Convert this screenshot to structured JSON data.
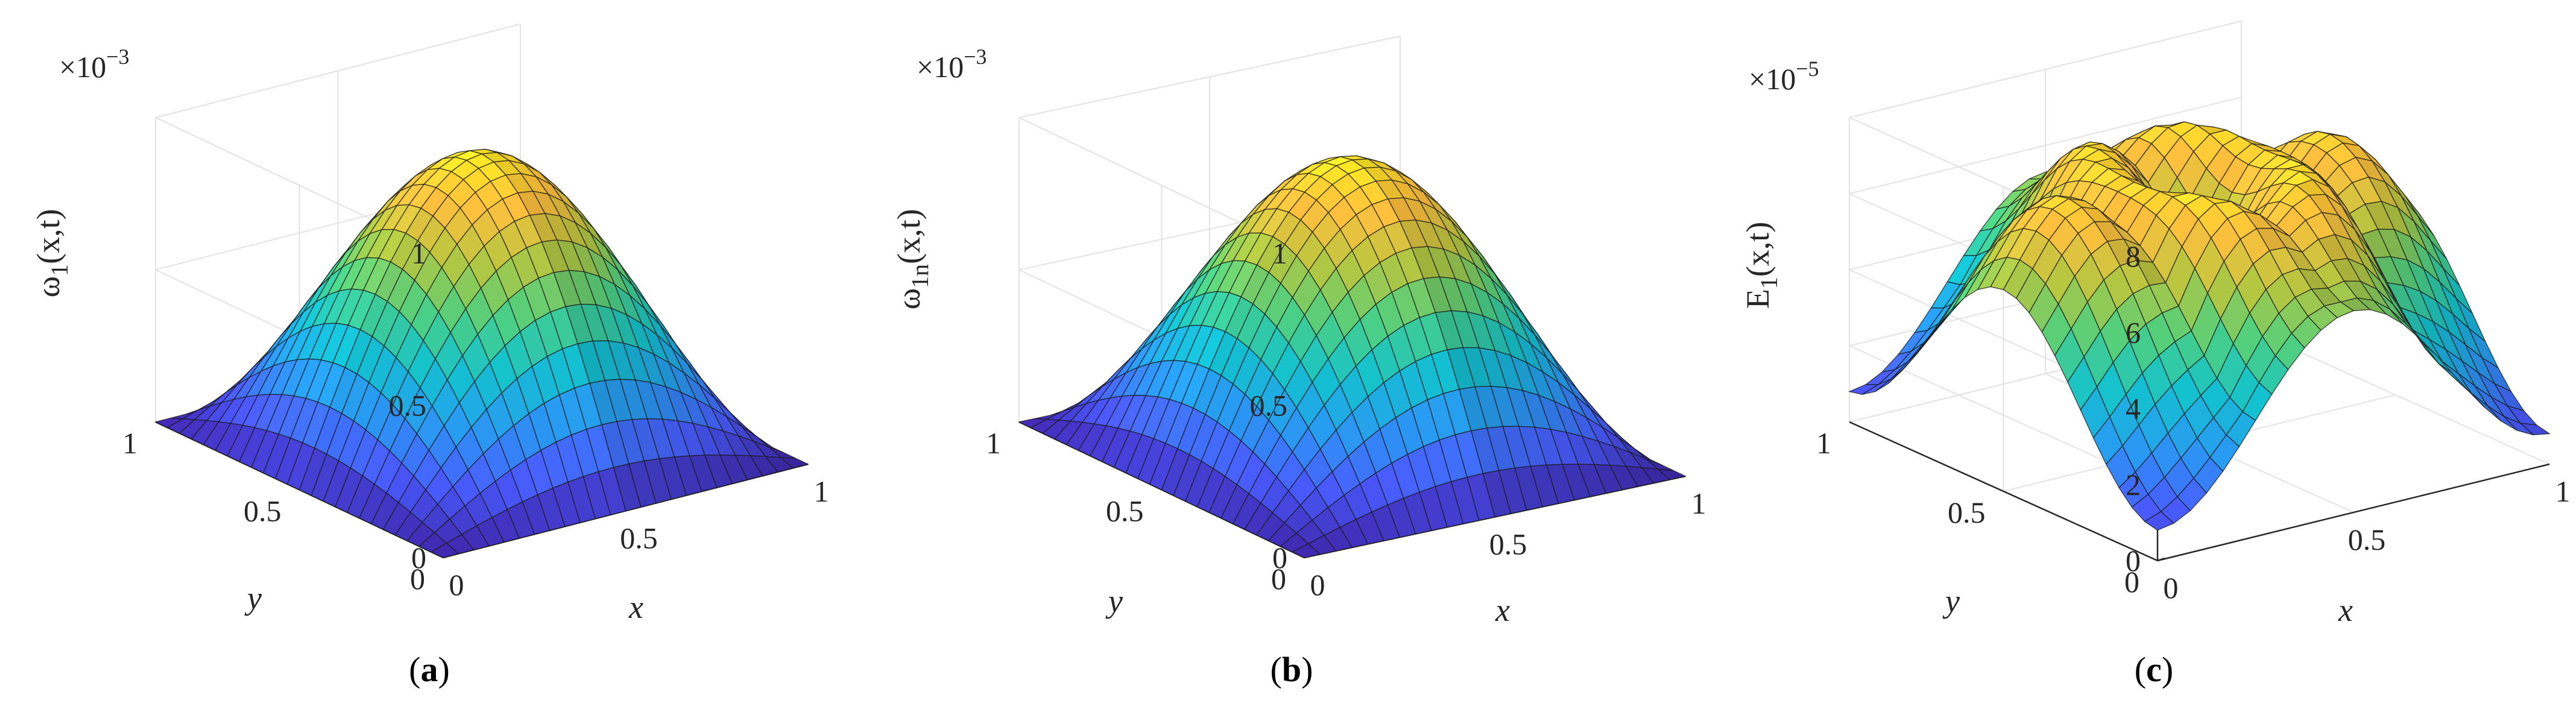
{
  "chart_data": [
    {
      "type": "surface",
      "caption": "a",
      "zlabel": {
        "main": "ω",
        "sub": "1",
        "rest": "(x,t)"
      },
      "exponent": {
        "base": "×10",
        "power": "−3"
      },
      "xlabel": "x",
      "ylabel": "y",
      "xlim": [
        0,
        1
      ],
      "ylim": [
        0,
        1
      ],
      "zlim": [
        0,
        1
      ],
      "x_ticks": [
        "0",
        "0.5",
        "1"
      ],
      "y_ticks": [
        "0",
        "0.5",
        "1"
      ],
      "z_ticks": [
        "0",
        "0.5",
        "1"
      ],
      "z_tick_values": [
        0,
        0.5,
        1
      ],
      "function": "sin(pi*x)*sin(pi*y)",
      "peak": 0.95,
      "grid": true,
      "colormap": "parula"
    },
    {
      "type": "surface",
      "caption": "b",
      "zlabel": {
        "main": "ω",
        "sub": "1n",
        "rest": "(x,t)"
      },
      "exponent": {
        "base": "×10",
        "power": "−3"
      },
      "xlabel": "x",
      "ylabel": "y",
      "xlim": [
        0,
        1
      ],
      "ylim": [
        0,
        1
      ],
      "zlim": [
        0,
        1
      ],
      "x_ticks": [
        "0",
        "0.5",
        "1"
      ],
      "y_ticks": [
        "0",
        "0.5",
        "1"
      ],
      "z_ticks": [
        "0",
        "0.5",
        "1"
      ],
      "z_tick_values": [
        0,
        0.5,
        1
      ],
      "function": "sin(pi*x)*sin(pi*y)",
      "peak": 0.95,
      "grid": true,
      "colormap": "parula"
    },
    {
      "type": "surface",
      "caption": "c",
      "zlabel": {
        "main": "E",
        "sub": "1",
        "rest": "(x,t)"
      },
      "exponent": {
        "base": "×10",
        "power": "−5"
      },
      "xlabel": "x",
      "ylabel": "y",
      "xlim": [
        0,
        1
      ],
      "ylim": [
        0,
        1
      ],
      "zlim": [
        0,
        8
      ],
      "x_ticks": [
        "0",
        "0.5",
        "1"
      ],
      "y_ticks": [
        "0",
        "0.5",
        "1"
      ],
      "z_ticks": [
        "0",
        "2",
        "4",
        "6",
        "8"
      ],
      "z_tick_values": [
        0,
        2,
        4,
        6,
        8
      ],
      "function": "error",
      "peak": 7.5,
      "grid": true,
      "colormap": "parula"
    }
  ]
}
